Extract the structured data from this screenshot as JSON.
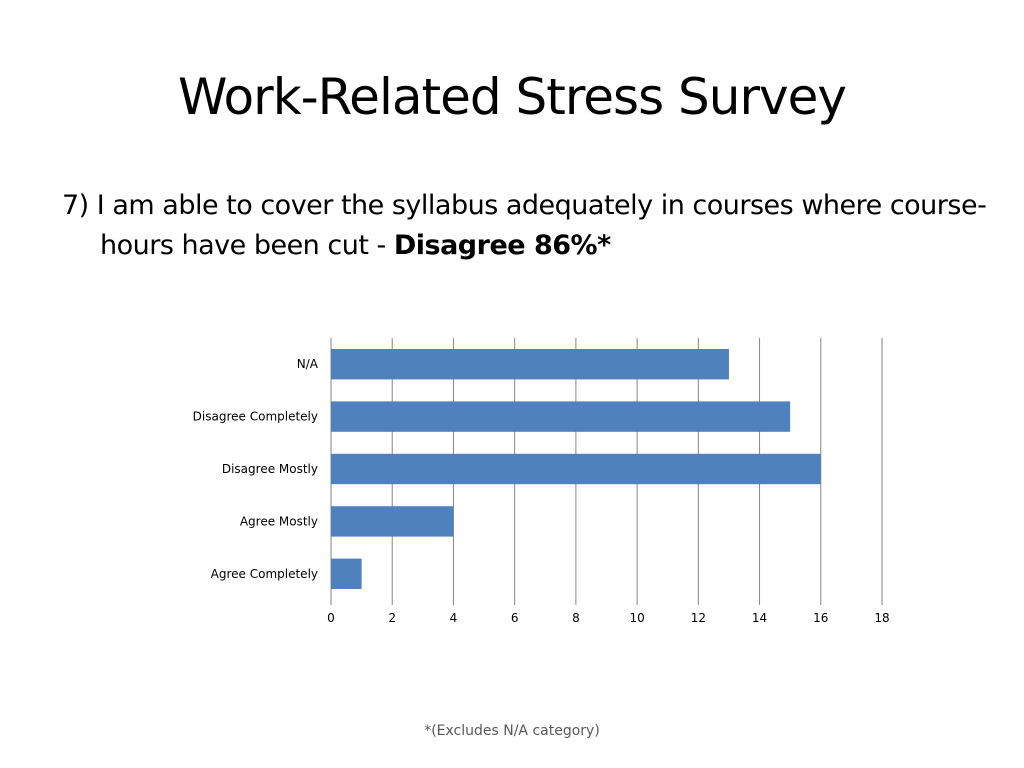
{
  "slide": {
    "title": "Work-Related Stress Survey",
    "question_text": "7) I am able to cover the syllabus adequately in courses where course-hours have been cut - ",
    "question_emphasis": "Disagree 86%*",
    "footnote": "*(Excludes N/A category)"
  },
  "colors": {
    "bar": "#4F81BD",
    "grid": "#868686",
    "axis_text": "#000000",
    "footnote": "#595959"
  },
  "chart_data": {
    "type": "bar",
    "orientation": "horizontal",
    "categories": [
      "N/A",
      "Disagree Completely",
      "Disagree Mostly",
      "Agree Mostly",
      "Agree Completely"
    ],
    "values": [
      13,
      15,
      16,
      4,
      1
    ],
    "xlim": [
      0,
      18
    ],
    "x_ticks": [
      0,
      2,
      4,
      6,
      8,
      10,
      12,
      14,
      16,
      18
    ],
    "grid": true,
    "legend": "none"
  }
}
